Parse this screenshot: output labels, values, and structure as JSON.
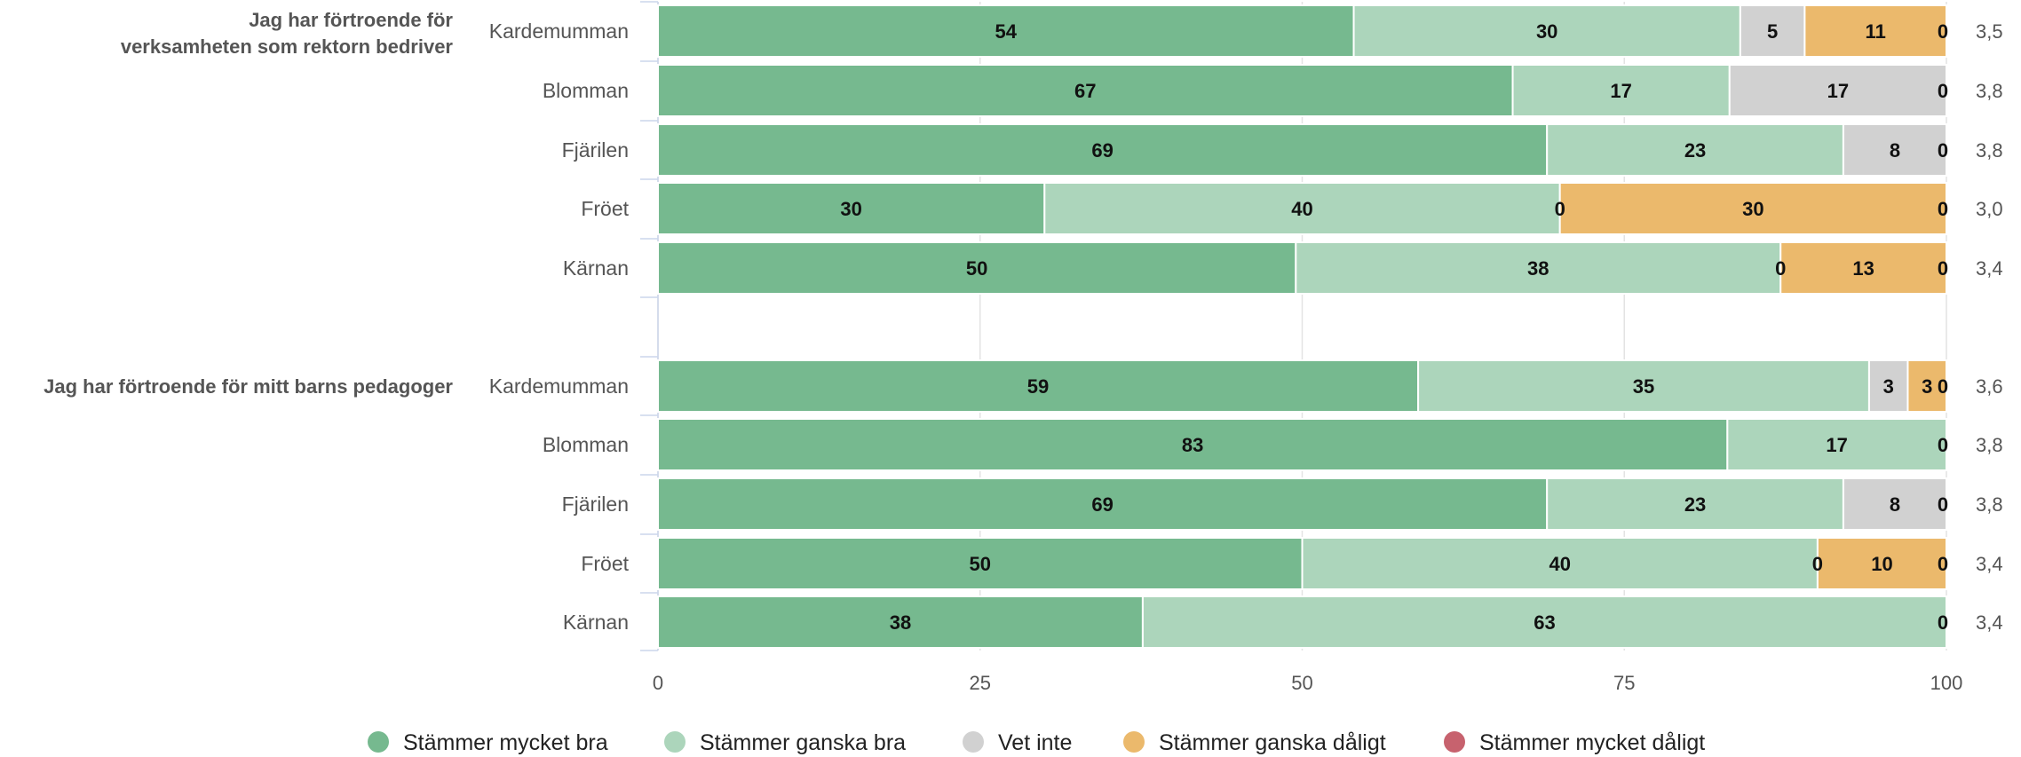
{
  "chart_data": {
    "type": "bar",
    "orientation": "horizontal",
    "stacked": true,
    "xlim": [
      0,
      100
    ],
    "xticks": [
      "0",
      "25",
      "50",
      "75",
      "100"
    ],
    "grid": true,
    "legend_position": "bottom",
    "series": [
      {
        "name": "Stämmer mycket bra",
        "color": "#76b98f"
      },
      {
        "name": "Stämmer ganska bra",
        "color": "#acd5bb"
      },
      {
        "name": "Vet inte",
        "color": "#d1d1d1"
      },
      {
        "name": "Stämmer ganska dåligt",
        "color": "#ebb96c"
      },
      {
        "name": "Stämmer mycket dåligt",
        "color": "#c7626e"
      }
    ],
    "groups": [
      {
        "title_lines": [
          "Jag har förtroende för",
          "verksamheten som rektorn bedriver"
        ],
        "rows": [
          {
            "category": "Kardemumman",
            "values": [
              54,
              30,
              5,
              11,
              0
            ],
            "labels": [
              "54",
              "30",
              "5",
              "11",
              "0"
            ],
            "mean": "3,5"
          },
          {
            "category": "Blomman",
            "values": [
              67,
              17,
              17,
              0,
              0
            ],
            "labels": [
              "67",
              "17",
              "17",
              null,
              "0"
            ],
            "mean": "3,8"
          },
          {
            "category": "Fjärilen",
            "values": [
              69,
              23,
              8,
              0,
              0
            ],
            "labels": [
              "69",
              "23",
              "8",
              null,
              "0"
            ],
            "mean": "3,8"
          },
          {
            "category": "Fröet",
            "values": [
              30,
              40,
              0,
              30,
              0
            ],
            "labels": [
              "30",
              "40",
              "0",
              "30",
              "0"
            ],
            "mean": "3,0"
          },
          {
            "category": "Kärnan",
            "values": [
              50,
              38,
              0,
              13,
              0
            ],
            "labels": [
              "50",
              "38",
              "0",
              "13",
              "0"
            ],
            "mean": "3,4"
          }
        ]
      },
      {
        "title_lines": [
          "Jag har förtroende för mitt barns pedagoger"
        ],
        "rows": [
          {
            "category": "Kardemumman",
            "values": [
              59,
              35,
              3,
              3,
              0
            ],
            "labels": [
              "59",
              "35",
              "3",
              "3",
              "0"
            ],
            "mean": "3,6"
          },
          {
            "category": "Blomman",
            "values": [
              83,
              17,
              0,
              0,
              0
            ],
            "labels": [
              "83",
              "17",
              null,
              null,
              "0"
            ],
            "mean": "3,8"
          },
          {
            "category": "Fjärilen",
            "values": [
              69,
              23,
              8,
              0,
              0
            ],
            "labels": [
              "69",
              "23",
              "8",
              null,
              "0"
            ],
            "mean": "3,8"
          },
          {
            "category": "Fröet",
            "values": [
              50,
              40,
              0,
              10,
              0
            ],
            "labels": [
              "50",
              "40",
              "0",
              "10",
              "0"
            ],
            "mean": "3,4"
          },
          {
            "category": "Kärnan",
            "values": [
              38,
              63,
              0,
              0,
              0
            ],
            "labels": [
              "38",
              "63",
              null,
              null,
              "0"
            ],
            "mean": "3,4"
          }
        ]
      }
    ]
  }
}
